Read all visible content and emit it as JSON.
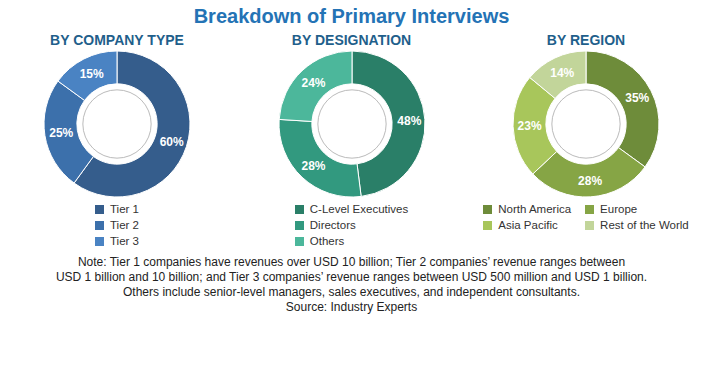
{
  "title": "Breakdown of Primary Interviews",
  "chart_data": [
    {
      "type": "pie",
      "title": "BY COMPANY TYPE",
      "categories": [
        "Tier 1",
        "Tier 2",
        "Tier 3"
      ],
      "values": [
        60,
        25,
        15
      ],
      "value_labels": [
        "60%",
        "25%",
        "15%"
      ],
      "colors": [
        "#355d8c",
        "#3c70ab",
        "#4a83c3"
      ],
      "data_labels": true,
      "legend": "bottom"
    },
    {
      "type": "pie",
      "title": "BY DESIGNATION",
      "categories": [
        "C-Level Executives",
        "Directors",
        "Others"
      ],
      "values": [
        48,
        28,
        24
      ],
      "value_labels": [
        "48%",
        "28%",
        "24%"
      ],
      "colors": [
        "#2a7f68",
        "#32997f",
        "#4cb79b"
      ],
      "data_labels": true,
      "legend": "bottom"
    },
    {
      "type": "pie",
      "title": "BY REGION",
      "categories": [
        "North America",
        "Europe",
        "Asia Pacific",
        "Rest of the World"
      ],
      "values": [
        35,
        28,
        23,
        14
      ],
      "value_labels": [
        "35%",
        "28%",
        "23%",
        "14%"
      ],
      "colors": [
        "#6e8c3a",
        "#86a545",
        "#a8c65b",
        "#c2d59a"
      ],
      "data_labels": true,
      "legend": "bottom"
    }
  ],
  "note": [
    "Note: Tier 1 companies have revenues over USD 10 billion; Tier 2 companies’ revenue ranges between",
    "USD 1 billion and 10 billion; and Tier 3 companies’ revenue ranges between USD 500 million and USD 1 billion.",
    "Others include senior-level managers, sales executives, and independent consultants."
  ],
  "source": "Source: Industry Experts"
}
